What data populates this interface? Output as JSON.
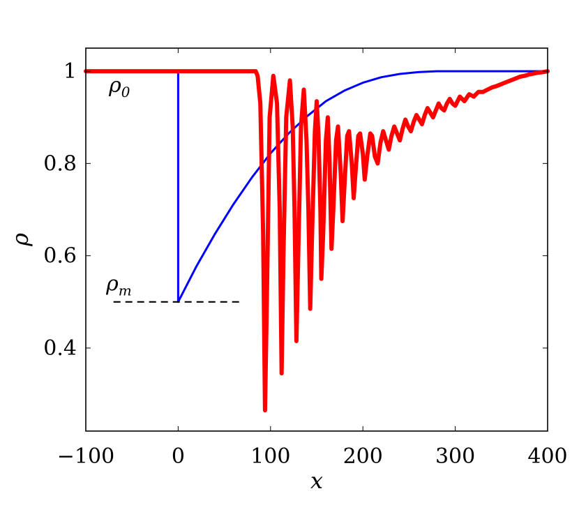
{
  "chart_data": {
    "type": "line",
    "xlabel": "x",
    "ylabel": "ρ",
    "xlim": [
      -100,
      400
    ],
    "ylim": [
      0.22,
      1.05
    ],
    "xticks": [
      -100,
      0,
      100,
      200,
      300,
      400
    ],
    "yticks": [
      0.4,
      0.6,
      0.8,
      1
    ],
    "xtick_labels": [
      "−100",
      "0",
      "100",
      "200",
      "300",
      "400"
    ],
    "ytick_labels": [
      "0.4",
      "0.6",
      "0.8",
      "1"
    ],
    "grid": false,
    "legend": "none",
    "annotations": [
      {
        "text": "ρ",
        "sub": "0",
        "x": -75,
        "y": 0.955
      },
      {
        "text": "ρ",
        "sub": "m",
        "x": -78,
        "y": 0.525
      }
    ],
    "reference_lines": [
      {
        "style": "dashed",
        "color": "#000000",
        "x": [
          -70,
          70
        ],
        "y": [
          0.5,
          0.5
        ]
      }
    ],
    "series": [
      {
        "color": "#0000ff",
        "points": [
          [
            -100,
            1.0
          ],
          [
            0,
            1.0
          ],
          [
            0,
            0.5
          ],
          [
            20,
            0.578
          ],
          [
            40,
            0.648
          ],
          [
            60,
            0.712
          ],
          [
            80,
            0.77
          ],
          [
            100,
            0.822
          ],
          [
            120,
            0.866
          ],
          [
            140,
            0.903
          ],
          [
            160,
            0.935
          ],
          [
            180,
            0.958
          ],
          [
            200,
            0.975
          ],
          [
            220,
            0.987
          ],
          [
            240,
            0.994
          ],
          [
            260,
            0.998
          ],
          [
            280,
            1.0
          ],
          [
            400,
            1.0
          ]
        ]
      },
      {
        "color": "#ff0000",
        "points": [
          [
            -100,
            1.0
          ],
          [
            84,
            1.0
          ],
          [
            86,
            0.99
          ],
          [
            89,
            0.93
          ],
          [
            92,
            0.65
          ],
          [
            94,
            0.265
          ],
          [
            96,
            0.5
          ],
          [
            99,
            0.9
          ],
          [
            103,
            0.99
          ],
          [
            107,
            0.93
          ],
          [
            110,
            0.7
          ],
          [
            112,
            0.345
          ],
          [
            114,
            0.6
          ],
          [
            117,
            0.9
          ],
          [
            121,
            0.98
          ],
          [
            124,
            0.88
          ],
          [
            126,
            0.7
          ],
          [
            128,
            0.415
          ],
          [
            130,
            0.6
          ],
          [
            133,
            0.88
          ],
          [
            136,
            0.96
          ],
          [
            139,
            0.85
          ],
          [
            141,
            0.7
          ],
          [
            143,
            0.485
          ],
          [
            145,
            0.65
          ],
          [
            148,
            0.87
          ],
          [
            150,
            0.935
          ],
          [
            152,
            0.86
          ],
          [
            154,
            0.7
          ],
          [
            155,
            0.55
          ],
          [
            157,
            0.65
          ],
          [
            160,
            0.85
          ],
          [
            162,
            0.9
          ],
          [
            164,
            0.8
          ],
          [
            166,
            0.615
          ],
          [
            168,
            0.7
          ],
          [
            171,
            0.85
          ],
          [
            173,
            0.88
          ],
          [
            176,
            0.78
          ],
          [
            178,
            0.675
          ],
          [
            180,
            0.75
          ],
          [
            183,
            0.86
          ],
          [
            185,
            0.87
          ],
          [
            188,
            0.8
          ],
          [
            190,
            0.725
          ],
          [
            192,
            0.78
          ],
          [
            195,
            0.86
          ],
          [
            197,
            0.865
          ],
          [
            200,
            0.82
          ],
          [
            202,
            0.765
          ],
          [
            205,
            0.82
          ],
          [
            208,
            0.865
          ],
          [
            210,
            0.86
          ],
          [
            213,
            0.815
          ],
          [
            216,
            0.8
          ],
          [
            219,
            0.845
          ],
          [
            222,
            0.87
          ],
          [
            225,
            0.85
          ],
          [
            228,
            0.83
          ],
          [
            231,
            0.86
          ],
          [
            234,
            0.88
          ],
          [
            237,
            0.865
          ],
          [
            240,
            0.85
          ],
          [
            243,
            0.875
          ],
          [
            246,
            0.895
          ],
          [
            249,
            0.88
          ],
          [
            252,
            0.87
          ],
          [
            255,
            0.89
          ],
          [
            258,
            0.905
          ],
          [
            261,
            0.895
          ],
          [
            264,
            0.885
          ],
          [
            267,
            0.905
          ],
          [
            270,
            0.92
          ],
          [
            273,
            0.91
          ],
          [
            276,
            0.9
          ],
          [
            279,
            0.915
          ],
          [
            282,
            0.93
          ],
          [
            285,
            0.92
          ],
          [
            288,
            0.915
          ],
          [
            291,
            0.93
          ],
          [
            294,
            0.94
          ],
          [
            297,
            0.93
          ],
          [
            300,
            0.925
          ],
          [
            305,
            0.945
          ],
          [
            310,
            0.935
          ],
          [
            315,
            0.95
          ],
          [
            320,
            0.945
          ],
          [
            325,
            0.955
          ],
          [
            330,
            0.955
          ],
          [
            335,
            0.96
          ],
          [
            340,
            0.965
          ],
          [
            345,
            0.968
          ],
          [
            350,
            0.972
          ],
          [
            355,
            0.976
          ],
          [
            360,
            0.98
          ],
          [
            365,
            0.984
          ],
          [
            370,
            0.988
          ],
          [
            375,
            0.99
          ],
          [
            380,
            0.993
          ],
          [
            385,
            0.995
          ],
          [
            390,
            0.997
          ],
          [
            395,
            0.998
          ],
          [
            400,
            1.0
          ]
        ]
      }
    ]
  }
}
